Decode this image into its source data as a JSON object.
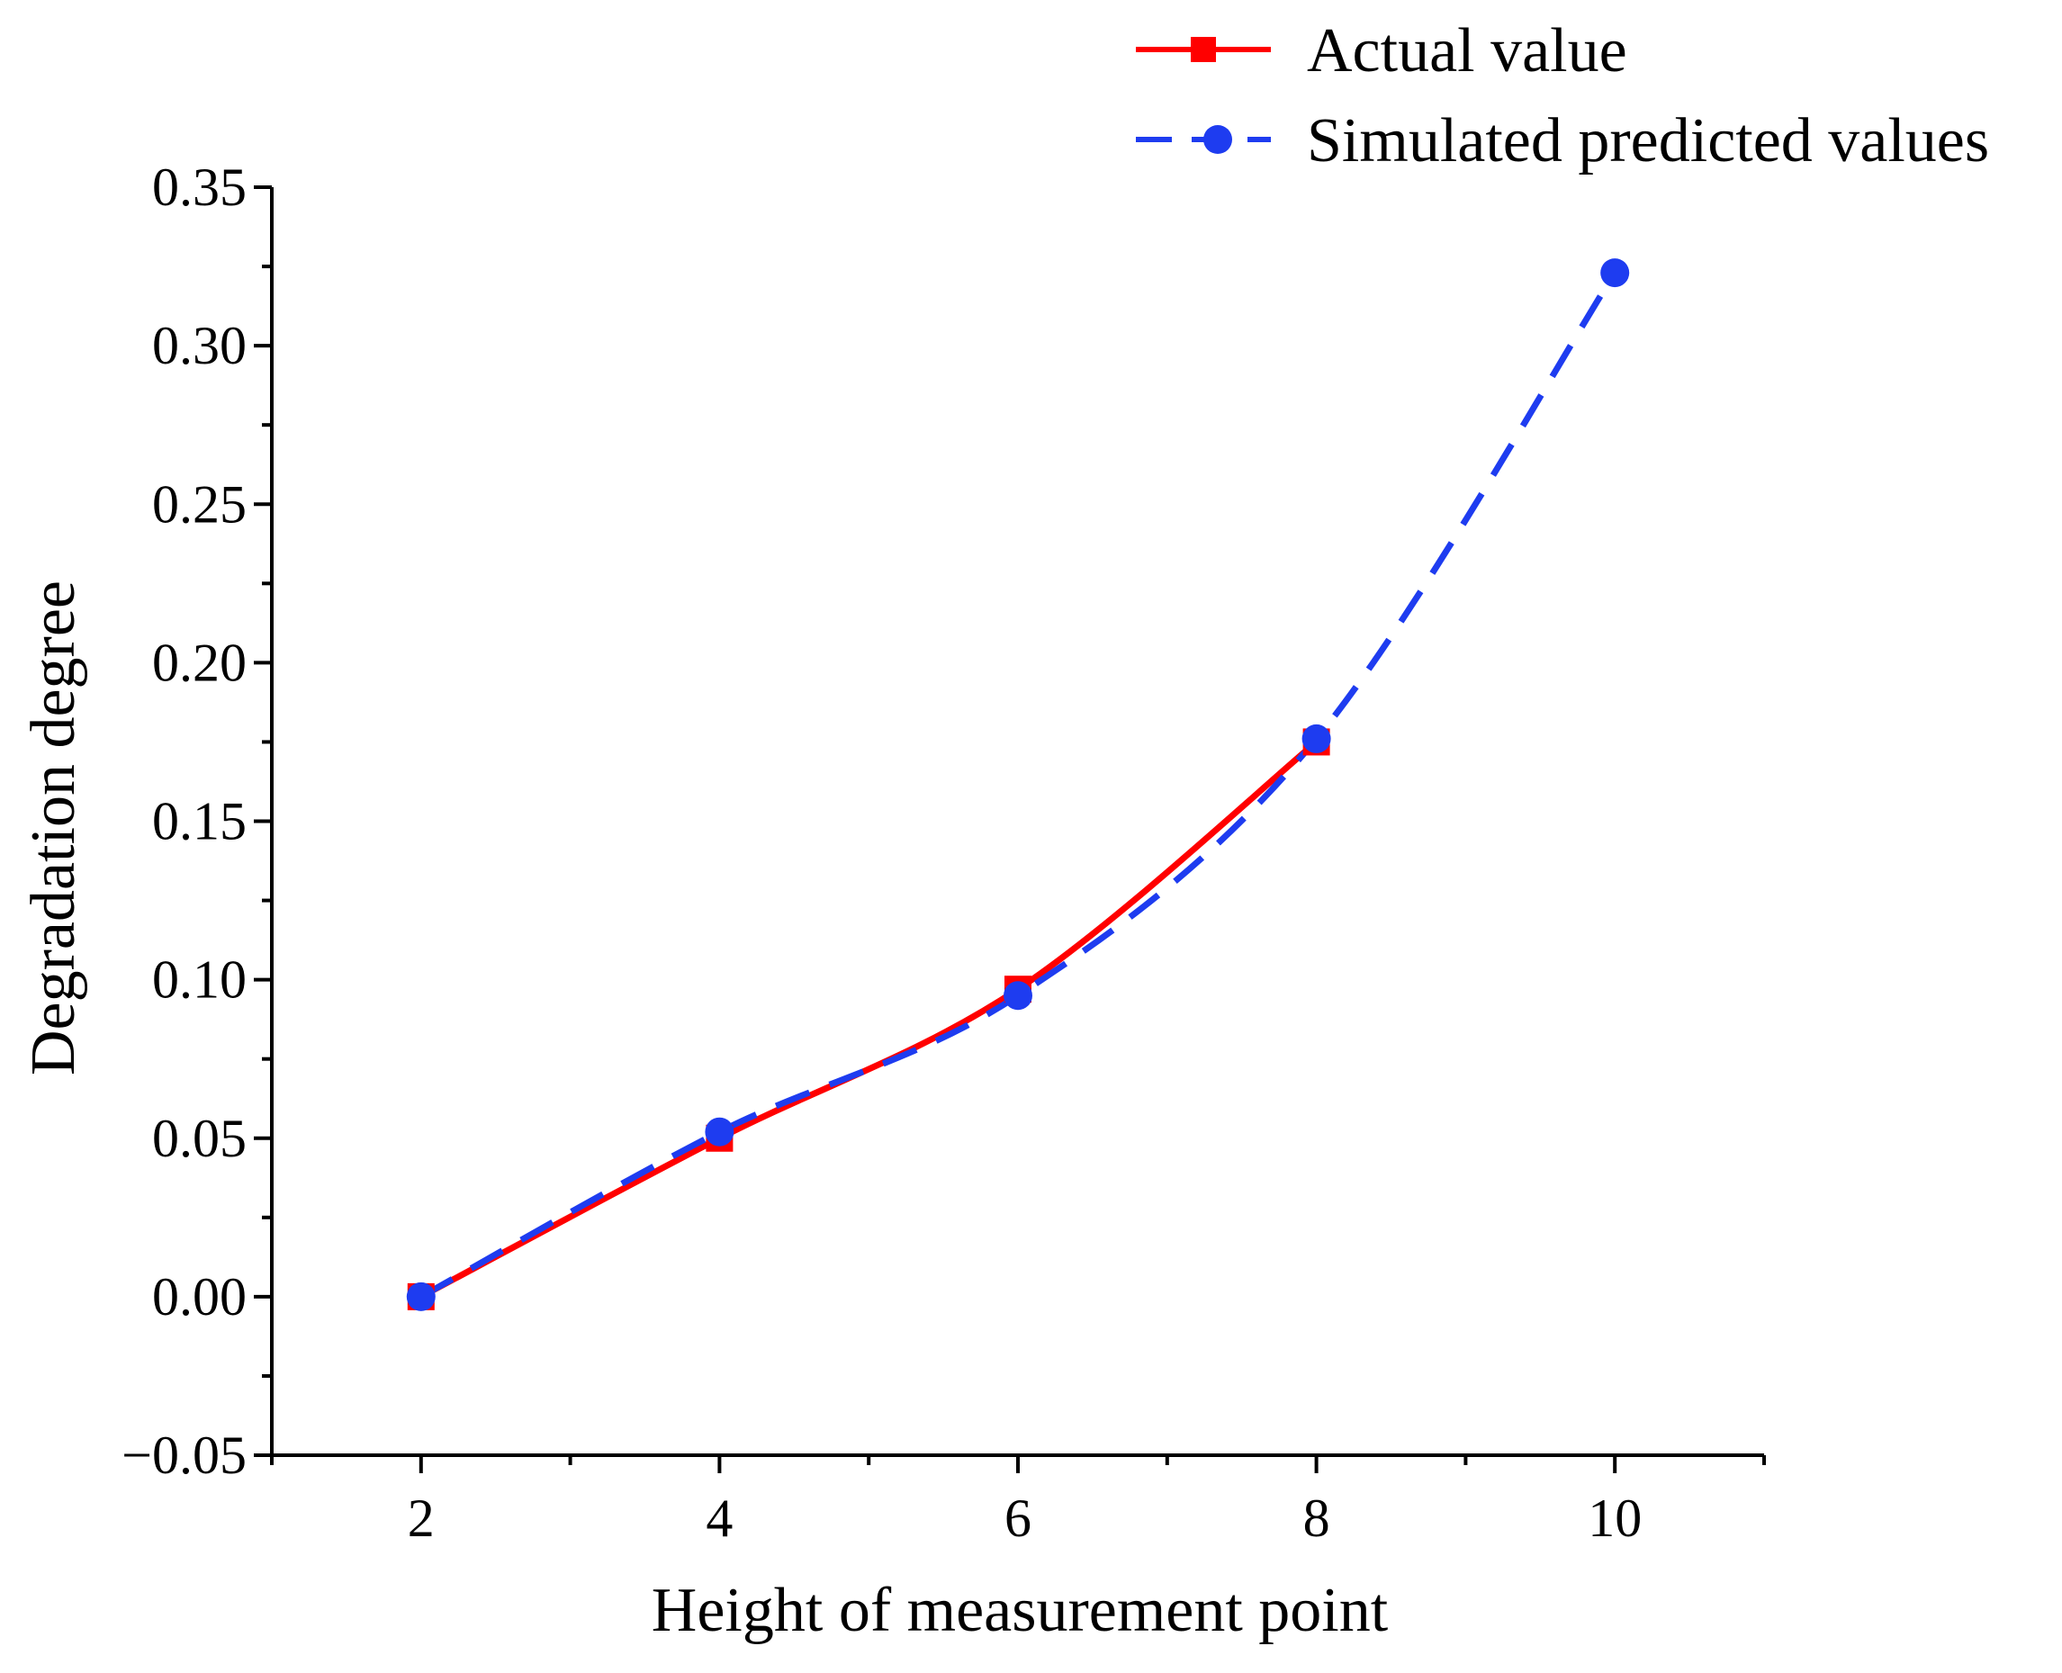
{
  "chart_data": {
    "type": "line",
    "title": "",
    "xlabel": "Height of measurement point",
    "ylabel": "Degradation degree",
    "xlim": [
      1,
      11
    ],
    "ylim": [
      -0.05,
      0.35
    ],
    "x_ticks": [
      2,
      4,
      6,
      8,
      10
    ],
    "x_tick_labels": [
      "2",
      "4",
      "6",
      "8",
      "10"
    ],
    "y_ticks": [
      -0.05,
      0.0,
      0.05,
      0.1,
      0.15,
      0.2,
      0.25,
      0.3,
      0.35
    ],
    "y_tick_labels": [
      "−0.05",
      "0.00",
      "0.05",
      "0.10",
      "0.15",
      "0.20",
      "0.25",
      "0.30",
      "0.35"
    ],
    "grid": false,
    "legend_position": "top-right",
    "series": [
      {
        "name": "Actual value",
        "color": "#ff0000",
        "line_style": "solid",
        "marker": "square",
        "x": [
          2,
          4,
          6,
          8
        ],
        "y": [
          0.0,
          0.05,
          0.097,
          0.175
        ]
      },
      {
        "name": "Simulated predicted values",
        "color": "#1e3cf0",
        "line_style": "dashed",
        "marker": "circle",
        "x": [
          2,
          4,
          6,
          8,
          10
        ],
        "y": [
          0.0,
          0.052,
          0.095,
          0.176,
          0.323
        ]
      }
    ]
  }
}
